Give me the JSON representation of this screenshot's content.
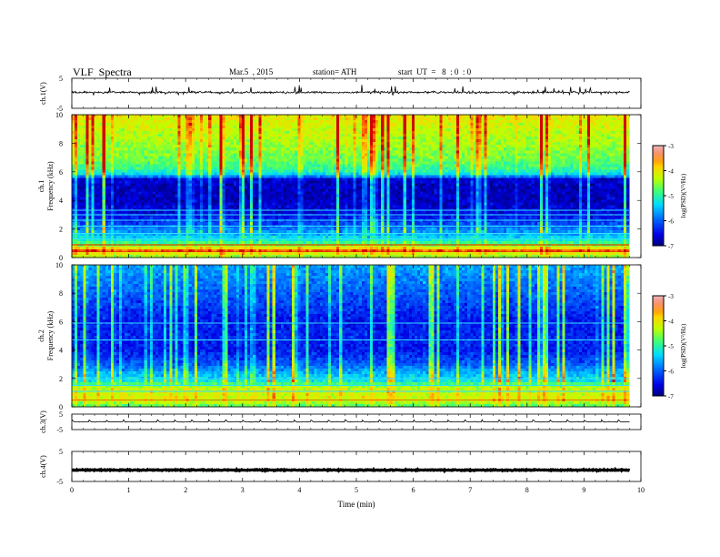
{
  "header": {
    "title": "VLF  Spectra",
    "date": "Mar.5  , 2015",
    "station": "station= ATH",
    "start": "start  UT  =   8  : 0  : 0"
  },
  "chart_data": [
    {
      "type": "line",
      "panel": "ch1-waveform",
      "ylabel": "ch.1(V)",
      "ylim": [
        -5,
        5
      ],
      "y_ticks": [
        "5",
        "-5"
      ],
      "xlim": [
        0,
        10
      ],
      "baseline": 0.3,
      "noise_amplitude": 0.5,
      "spike_amplitude": 3.5
    },
    {
      "type": "heatmap",
      "panel": "ch1-spectrogram",
      "ylabel_line1": "ch.1",
      "ylabel_line2": "Frequency  (kHz)",
      "ylim": [
        0,
        10
      ],
      "y_ticks": [
        "0",
        "2",
        "4",
        "6",
        "8",
        "10"
      ],
      "xlim": [
        0,
        9.8
      ],
      "colorbar": {
        "label": "log(PSD)(V²/Hz)",
        "range": [
          -7,
          -3
        ],
        "ticks": [
          "-3",
          "-4",
          "-5",
          "-6",
          "-7"
        ]
      },
      "frequency_profile": [
        {
          "f": 0.0,
          "v": -4.6
        },
        {
          "f": 0.3,
          "v": -4.0
        },
        {
          "f": 0.5,
          "v": -3.3
        },
        {
          "f": 0.7,
          "v": -4.1
        },
        {
          "f": 1.0,
          "v": -4.8
        },
        {
          "f": 1.3,
          "v": -5.2
        },
        {
          "f": 1.6,
          "v": -5.5
        },
        {
          "f": 2.0,
          "v": -5.8
        },
        {
          "f": 2.5,
          "v": -6.2
        },
        {
          "f": 3.0,
          "v": -6.5
        },
        {
          "f": 4.0,
          "v": -6.7
        },
        {
          "f": 5.0,
          "v": -6.7
        },
        {
          "f": 5.5,
          "v": -6.6
        },
        {
          "f": 5.8,
          "v": -5.3
        },
        {
          "f": 6.2,
          "v": -4.9
        },
        {
          "f": 7.0,
          "v": -4.6
        },
        {
          "f": 8.0,
          "v": -4.4
        },
        {
          "f": 9.0,
          "v": -4.2
        },
        {
          "f": 10.0,
          "v": -4.0
        }
      ],
      "burst_boost": 2.0
    },
    {
      "type": "heatmap",
      "panel": "ch2-spectrogram",
      "ylabel_line1": "ch.2",
      "ylabel_line2": "Frequency  (kHz)",
      "ylim": [
        0,
        10
      ],
      "y_ticks": [
        "0",
        "2",
        "4",
        "6",
        "8",
        "10"
      ],
      "xlim": [
        0,
        9.8
      ],
      "colorbar": {
        "label": "log(PSD)(V²/Hz)",
        "range": [
          -7,
          -3
        ],
        "ticks": [
          "-3",
          "-4",
          "-5",
          "-6",
          "-7"
        ]
      },
      "frequency_profile": [
        {
          "f": 0.0,
          "v": -4.8
        },
        {
          "f": 0.5,
          "v": -4.1
        },
        {
          "f": 1.0,
          "v": -4.2
        },
        {
          "f": 1.4,
          "v": -4.3
        },
        {
          "f": 1.8,
          "v": -5.2
        },
        {
          "f": 2.5,
          "v": -5.6
        },
        {
          "f": 3.0,
          "v": -6.0
        },
        {
          "f": 4.0,
          "v": -6.4
        },
        {
          "f": 5.0,
          "v": -6.3
        },
        {
          "f": 6.0,
          "v": -6.4
        },
        {
          "f": 7.0,
          "v": -6.2
        },
        {
          "f": 8.0,
          "v": -6.0
        },
        {
          "f": 9.0,
          "v": -5.8
        },
        {
          "f": 10.0,
          "v": -5.6
        }
      ],
      "burst_boost": 2.0
    },
    {
      "type": "line",
      "panel": "ch3-waveform",
      "ylabel": "ch.3(V)",
      "ylim": [
        -5,
        5
      ],
      "y_ticks": [
        "5",
        "-5"
      ],
      "xlim": [
        0,
        10
      ],
      "baseline": 0.0,
      "noise_amplitude": 0.3,
      "period_min": 0.3,
      "pulse_amplitude": 1.2
    },
    {
      "type": "line",
      "panel": "ch4-waveform",
      "ylabel": "ch.4(V)",
      "ylim": [
        -5,
        5
      ],
      "y_ticks": [
        "5",
        "-5"
      ],
      "xlim": [
        0,
        10
      ],
      "baseline": -1.2,
      "noise_amplitude": 0.25
    }
  ],
  "x_axis": {
    "label": "Time  (min)",
    "ticks": [
      "0",
      "1",
      "2",
      "3",
      "4",
      "5",
      "6",
      "7",
      "8",
      "9",
      "10"
    ],
    "range": [
      0,
      10
    ]
  }
}
